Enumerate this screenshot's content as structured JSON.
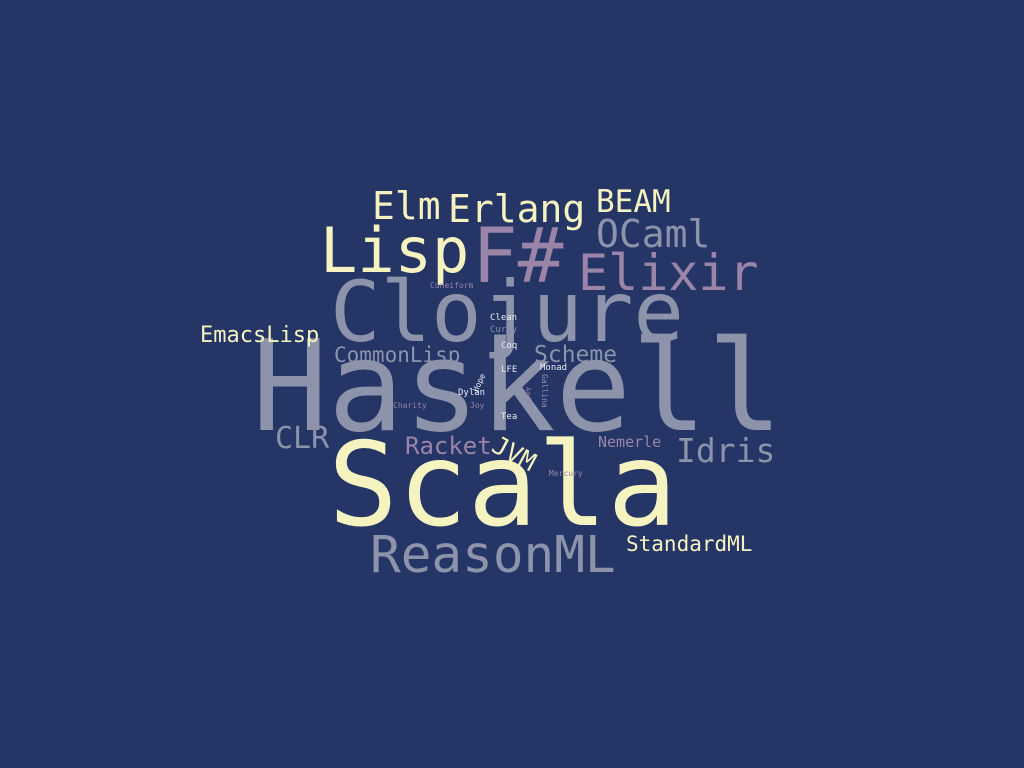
{
  "palette": {
    "background": "#243566",
    "cream": "#f5f3c0",
    "gray": "#8c93ab",
    "purple": "#9a84a8",
    "light": "#e9ecf2"
  },
  "words": [
    {
      "key": "haskell",
      "text": "Haskell",
      "color": "gray"
    },
    {
      "key": "scala",
      "text": "Scala",
      "color": "cream"
    },
    {
      "key": "clojure",
      "text": "Clojure",
      "color": "gray"
    },
    {
      "key": "fsharp",
      "text": "F#",
      "color": "purple"
    },
    {
      "key": "lisp",
      "text": "Lisp",
      "color": "cream"
    },
    {
      "key": "elixir",
      "text": "Elixir",
      "color": "purple"
    },
    {
      "key": "reasonml",
      "text": "ReasonML",
      "color": "gray"
    },
    {
      "key": "ocaml",
      "text": "OCaml",
      "color": "gray"
    },
    {
      "key": "erlang",
      "text": "Erlang",
      "color": "cream"
    },
    {
      "key": "elm",
      "text": "Elm",
      "color": "cream"
    },
    {
      "key": "beam",
      "text": "BEAM",
      "color": "cream"
    },
    {
      "key": "idris",
      "text": "Idris",
      "color": "gray"
    },
    {
      "key": "clr",
      "text": "CLR",
      "color": "gray"
    },
    {
      "key": "racket",
      "text": "Racket",
      "color": "purple"
    },
    {
      "key": "jvm",
      "text": "JVM",
      "color": "cream"
    },
    {
      "key": "commonlisp",
      "text": "CommonLisp",
      "color": "gray"
    },
    {
      "key": "scheme",
      "text": "Scheme",
      "color": "gray"
    },
    {
      "key": "emacslisp",
      "text": "EmacsLisp",
      "color": "cream"
    },
    {
      "key": "standardml",
      "text": "StandardML",
      "color": "cream"
    },
    {
      "key": "nemerle",
      "text": "Nemerle",
      "color": "purple"
    },
    {
      "key": "clean",
      "text": "Clean",
      "color": "light"
    },
    {
      "key": "curry",
      "text": "Curry",
      "color": "gray"
    },
    {
      "key": "coq",
      "text": "Coq",
      "color": "light"
    },
    {
      "key": "lfe",
      "text": "LFE",
      "color": "light"
    },
    {
      "key": "monad",
      "text": "Monad",
      "color": "light"
    },
    {
      "key": "hope",
      "text": "Hope",
      "color": "light"
    },
    {
      "key": "gallina",
      "text": "Gallina",
      "color": "gray"
    },
    {
      "key": "dylan",
      "text": "Dylan",
      "color": "light"
    },
    {
      "key": "agda",
      "text": "Agda",
      "color": "purple"
    },
    {
      "key": "charity",
      "text": "Charity",
      "color": "purple"
    },
    {
      "key": "joy",
      "text": "Joy",
      "color": "purple"
    },
    {
      "key": "tea",
      "text": "Tea",
      "color": "light"
    },
    {
      "key": "cuneiform",
      "text": "Cuneiform",
      "color": "purple"
    },
    {
      "key": "mercury",
      "text": "Mercury",
      "color": "purple"
    }
  ]
}
